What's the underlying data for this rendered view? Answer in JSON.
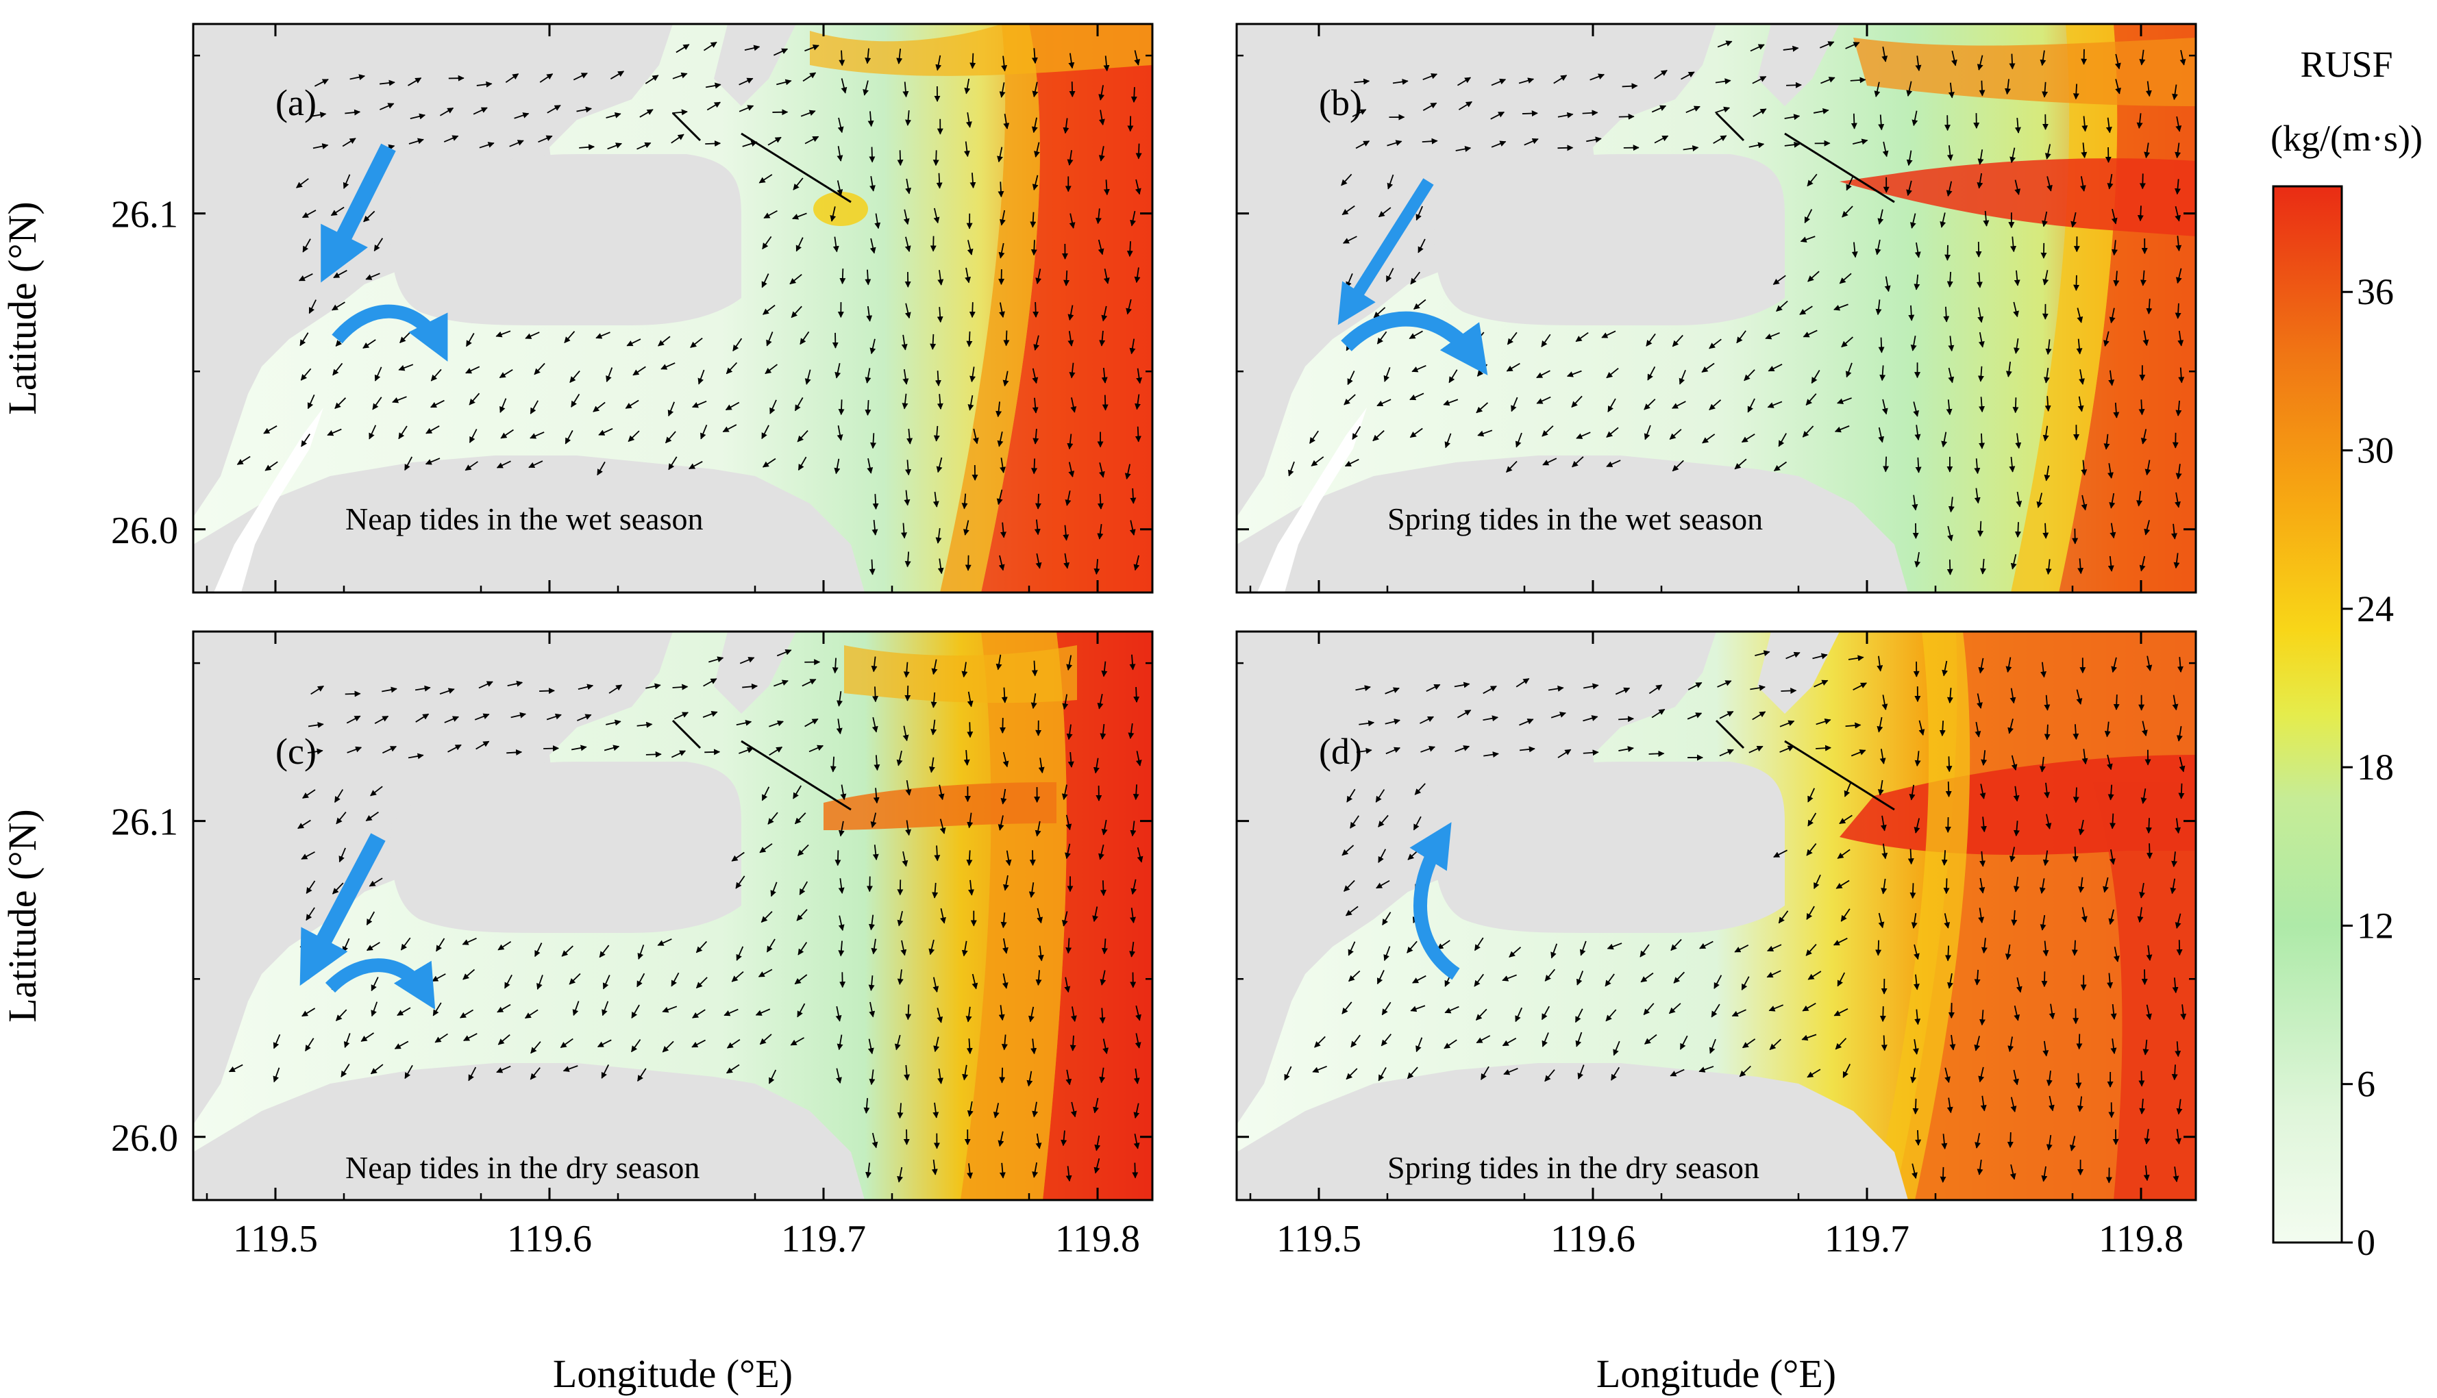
{
  "chart_data": [
    {
      "type": "heatmap",
      "panel": "(a)",
      "note": "Neap tides in the wet season",
      "xlabel": "",
      "ylabel": "Latitude (°N)",
      "xlim": [
        119.47,
        119.82
      ],
      "ylim": [
        25.98,
        26.16
      ],
      "yticks": [
        26.0,
        26.1
      ],
      "ytick_labels": [
        "26.0",
        "26.1"
      ],
      "xticks": [
        119.5,
        119.6,
        119.7,
        119.8
      ],
      "xtick_labels": [
        "119.5",
        "119.6",
        "119.7",
        "119.8"
      ],
      "show_xticklabels": false,
      "show_yticklabels": true,
      "max_rusf_region": "east offshore strip (~36)"
    },
    {
      "type": "heatmap",
      "panel": "(b)",
      "note": "Spring tides in the wet season",
      "xlabel": "",
      "ylabel": "",
      "xlim": [
        119.47,
        119.82
      ],
      "ylim": [
        25.98,
        26.16
      ],
      "yticks": [
        26.0,
        26.1
      ],
      "ytick_labels": [
        "26.0",
        "26.1"
      ],
      "xticks": [
        119.5,
        119.6,
        119.7,
        119.8
      ],
      "xtick_labels": [
        "119.5",
        "119.6",
        "119.7",
        "119.8"
      ],
      "show_xticklabels": false,
      "show_yticklabels": false,
      "max_rusf_region": "estuary mouth jet and east offshore (~36)"
    },
    {
      "type": "heatmap",
      "panel": "(c)",
      "note": "Neap tides in the dry season",
      "xlabel": "Longitude (°E)",
      "ylabel": "Latitude (°N)",
      "xlim": [
        119.47,
        119.82
      ],
      "ylim": [
        25.98,
        26.16
      ],
      "yticks": [
        26.0,
        26.1
      ],
      "ytick_labels": [
        "26.0",
        "26.1"
      ],
      "xticks": [
        119.5,
        119.6,
        119.7,
        119.8
      ],
      "xtick_labels": [
        "119.5",
        "119.6",
        "119.7",
        "119.8"
      ],
      "show_xticklabels": true,
      "show_yticklabels": true,
      "max_rusf_region": "east offshore strip (~36)"
    },
    {
      "type": "heatmap",
      "panel": "(d)",
      "note": "Spring tides in the dry season",
      "xlabel": "Longitude (°E)",
      "ylabel": "",
      "xlim": [
        119.47,
        119.82
      ],
      "ylim": [
        25.98,
        26.16
      ],
      "yticks": [
        26.0,
        26.1
      ],
      "ytick_labels": [
        "26.0",
        "26.1"
      ],
      "xticks": [
        119.5,
        119.6,
        119.7,
        119.8
      ],
      "xtick_labels": [
        "119.5",
        "119.6",
        "119.7",
        "119.8"
      ],
      "show_xticklabels": true,
      "show_yticklabels": false,
      "max_rusf_region": "estuary mouth jet spreading offshore (~36+)"
    }
  ],
  "colorbar": {
    "title_line1": "RUSF",
    "title_line2": "(kg/(m·s))",
    "range": [
      0,
      40
    ],
    "ticks": [
      0,
      6,
      12,
      18,
      24,
      30,
      36
    ],
    "tick_labels": [
      "0",
      "6",
      "12",
      "18",
      "24",
      "30",
      "36"
    ],
    "colors": [
      "#f3fcf0",
      "#d2f2cc",
      "#aeeaa8",
      "#d8ec7a",
      "#f7e21a",
      "#f8b410",
      "#f38812",
      "#ee5a14",
      "#ea2c14"
    ]
  },
  "colors": {
    "land": "#e1e1e1",
    "water_low": "#f3fcf0",
    "water_mid": "#b8ecb2",
    "high": "#ee3a14",
    "flow_arrow": "#2896ea",
    "vector": "#000000"
  }
}
